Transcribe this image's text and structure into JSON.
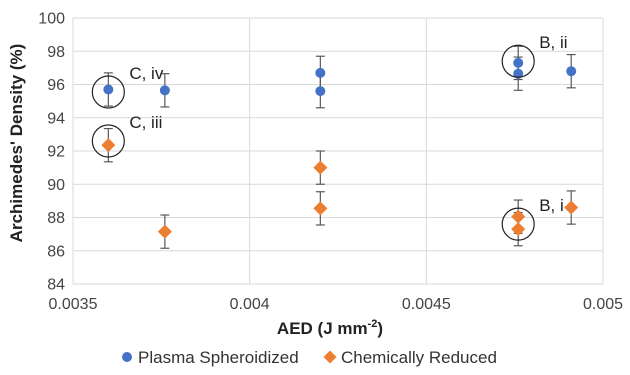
{
  "chart_data": {
    "type": "scatter",
    "xlabel": "AED (J mm",
    "xlabel_sup": "-2",
    "xlabel_end": ")",
    "ylabel": "Archimedes' Density (%)",
    "xlim": [
      0.0035,
      0.005
    ],
    "ylim": [
      84,
      100
    ],
    "xticks": [
      0.0035,
      0.004,
      0.0045,
      0.005
    ],
    "xtick_labels": [
      "0.0035",
      "0.004",
      "0.0045",
      "0.005"
    ],
    "yticks": [
      84,
      86,
      88,
      90,
      92,
      94,
      96,
      98,
      100
    ],
    "ytick_labels": [
      "84",
      "86",
      "88",
      "90",
      "92",
      "94",
      "96",
      "98",
      "100"
    ],
    "grid": true,
    "legend_position": "bottom",
    "series": [
      {
        "name": "Plasma Spheroidized",
        "color": "#4472c4",
        "marker": "circle",
        "points": [
          {
            "x": 0.0036,
            "y": 95.7,
            "err": 1.0
          },
          {
            "x": 0.00376,
            "y": 95.65,
            "err": 1.0
          },
          {
            "x": 0.0042,
            "y": 96.7,
            "err": 1.0
          },
          {
            "x": 0.0042,
            "y": 95.6,
            "err": 1.0
          },
          {
            "x": 0.00476,
            "y": 97.3,
            "err": 1.0
          },
          {
            "x": 0.00476,
            "y": 96.65,
            "err": 1.0
          },
          {
            "x": 0.00491,
            "y": 96.8,
            "err": 1.0
          }
        ]
      },
      {
        "name": "Chemically Reduced",
        "color": "#ed7d31",
        "marker": "diamond",
        "points": [
          {
            "x": 0.0036,
            "y": 92.35,
            "err": 1.0
          },
          {
            "x": 0.00376,
            "y": 87.15,
            "err": 1.0
          },
          {
            "x": 0.0042,
            "y": 91.0,
            "err": 1.0
          },
          {
            "x": 0.0042,
            "y": 88.55,
            "err": 1.0
          },
          {
            "x": 0.00476,
            "y": 88.05,
            "err": 1.0
          },
          {
            "x": 0.00476,
            "y": 87.3,
            "err": 1.0
          },
          {
            "x": 0.00491,
            "y": 88.6,
            "err": 1.0
          }
        ]
      }
    ],
    "annotations": [
      {
        "text": "C, iv",
        "x": 0.0036,
        "y": 95.55
      },
      {
        "text": "C, iii",
        "x": 0.0036,
        "y": 92.6
      },
      {
        "text": "B, ii",
        "x": 0.00476,
        "y": 97.4
      },
      {
        "text": "B, i",
        "x": 0.00476,
        "y": 87.6
      }
    ]
  }
}
